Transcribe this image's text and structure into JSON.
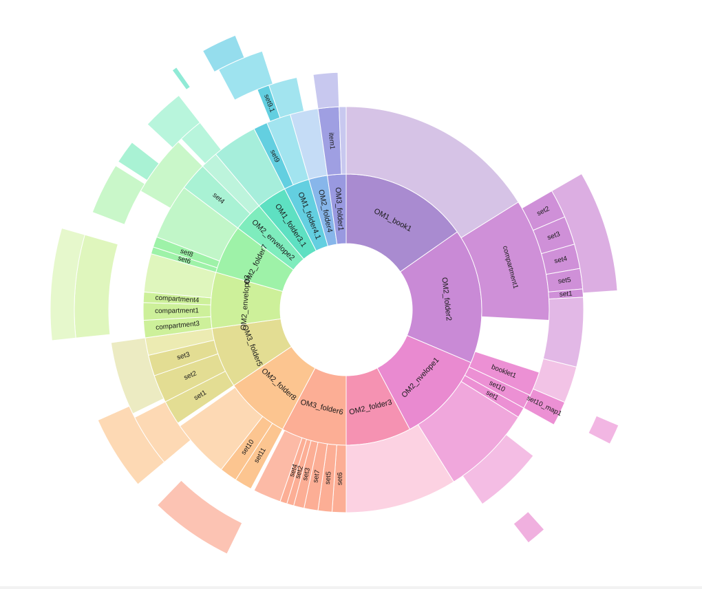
{
  "chart_data": {
    "type": "sunburst",
    "center_color": "#ffffff",
    "segments": [
      {
        "level": 1,
        "label": "OM1_book1",
        "start_deg": 0,
        "end_deg": 55,
        "color": "#a98bd0"
      },
      {
        "level": 1,
        "label": "OM2_folder2",
        "start_deg": 55,
        "end_deg": 113,
        "color": "#c98ad6"
      },
      {
        "level": 1,
        "label": "OM2_nvelope1",
        "start_deg": 113,
        "end_deg": 152,
        "color": "#e98ad0"
      },
      {
        "level": 1,
        "label": "OM2_folder3",
        "start_deg": 152,
        "end_deg": 180,
        "color": "#f592b2"
      },
      {
        "level": 1,
        "label": "OM3_folder6",
        "start_deg": 180,
        "end_deg": 208,
        "color": "#fcae95"
      },
      {
        "level": 1,
        "label": "OM2_folder8",
        "start_deg": 208,
        "end_deg": 236,
        "color": "#fcc590"
      },
      {
        "level": 1,
        "label": "OM3_folder5",
        "start_deg": 236,
        "end_deg": 262,
        "color": "#e3dd93"
      },
      {
        "level": 1,
        "label": "OM2_envelope3",
        "start_deg": 262,
        "end_deg": 286,
        "color": "#cdf09a"
      },
      {
        "level": 1,
        "label": "OM2_folder7",
        "start_deg": 286,
        "end_deg": 307,
        "color": "#9ef2a8"
      },
      {
        "level": 1,
        "label": "OM2_envelope2",
        "start_deg": 307,
        "end_deg": 320,
        "color": "#7eecbd"
      },
      {
        "level": 1,
        "label": "OM1_folder3.1",
        "start_deg": 320,
        "end_deg": 333,
        "color": "#5ee0c2"
      },
      {
        "level": 1,
        "label": "OM1_folder4.1",
        "start_deg": 333,
        "end_deg": 344,
        "color": "#63cfe0"
      },
      {
        "level": 1,
        "label": "OM2_folder4",
        "start_deg": 344,
        "end_deg": 352,
        "color": "#87b6ea"
      },
      {
        "level": 1,
        "label": "OM3_folder1",
        "start_deg": 352,
        "end_deg": 360,
        "color": "#9999e0"
      },
      {
        "level": 2,
        "label": "",
        "start_deg": 0,
        "end_deg": 58,
        "color": "#d6c3e6"
      },
      {
        "level": 2,
        "label": "compartment1",
        "start_deg": 58,
        "end_deg": 93,
        "color": "#cf90d8"
      },
      {
        "level": 2,
        "label": "booklet1",
        "start_deg": 108,
        "end_deg": 115,
        "color": "#ec90d4"
      },
      {
        "level": 2,
        "label": "set10",
        "start_deg": 115,
        "end_deg": 119,
        "color": "#ec90d4"
      },
      {
        "level": 2,
        "label": "set1",
        "start_deg": 119,
        "end_deg": 122,
        "color": "#ec90d4"
      },
      {
        "level": 2,
        "label": "",
        "start_deg": 122,
        "end_deg": 148,
        "color": "#f0a7dc"
      },
      {
        "level": 2,
        "label": "",
        "start_deg": 148,
        "end_deg": 180,
        "color": "#fcd2e2"
      },
      {
        "level": 2,
        "label": "set6",
        "start_deg": 180,
        "end_deg": 184,
        "color": "#fcae95"
      },
      {
        "level": 2,
        "label": "set5",
        "start_deg": 184,
        "end_deg": 188,
        "color": "#fcae95"
      },
      {
        "level": 2,
        "label": "set7",
        "start_deg": 188,
        "end_deg": 192,
        "color": "#fcae95"
      },
      {
        "level": 2,
        "label": "set3",
        "start_deg": 192,
        "end_deg": 195,
        "color": "#fcae95"
      },
      {
        "level": 2,
        "label": "set2",
        "start_deg": 195,
        "end_deg": 197,
        "color": "#fcae95"
      },
      {
        "level": 2,
        "label": "set4",
        "start_deg": 197,
        "end_deg": 199,
        "color": "#fcae95"
      },
      {
        "level": 2,
        "label": "",
        "start_deg": 199,
        "end_deg": 207,
        "color": "#fcbaa6"
      },
      {
        "level": 2,
        "label": "set11",
        "start_deg": 208,
        "end_deg": 213,
        "color": "#fcc590"
      },
      {
        "level": 2,
        "label": "set10",
        "start_deg": 213,
        "end_deg": 218,
        "color": "#fcc590"
      },
      {
        "level": 2,
        "label": "",
        "start_deg": 218,
        "end_deg": 235,
        "color": "#fdd9b4"
      },
      {
        "level": 2,
        "label": "set1",
        "start_deg": 236,
        "end_deg": 243,
        "color": "#e3dd93"
      },
      {
        "level": 2,
        "label": "set2",
        "start_deg": 243,
        "end_deg": 251,
        "color": "#e3dd93"
      },
      {
        "level": 2,
        "label": "set3",
        "start_deg": 251,
        "end_deg": 257,
        "color": "#e3dd93"
      },
      {
        "level": 2,
        "label": "",
        "start_deg": 257,
        "end_deg": 262,
        "color": "#ecebb2"
      },
      {
        "level": 2,
        "label": "compartment3",
        "start_deg": 262,
        "end_deg": 267,
        "color": "#cdf09a"
      },
      {
        "level": 2,
        "label": "compartment1",
        "start_deg": 267,
        "end_deg": 272,
        "color": "#cdf09a"
      },
      {
        "level": 2,
        "label": "compartment4",
        "start_deg": 272,
        "end_deg": 275,
        "color": "#cdf09a"
      },
      {
        "level": 2,
        "label": "",
        "start_deg": 275,
        "end_deg": 286,
        "color": "#dff6bd"
      },
      {
        "level": 2,
        "label": "set6",
        "start_deg": 286,
        "end_deg": 288,
        "color": "#9ef2a8"
      },
      {
        "level": 2,
        "label": "set8",
        "start_deg": 288,
        "end_deg": 291,
        "color": "#9ef2a8"
      },
      {
        "level": 2,
        "label": "",
        "start_deg": 291,
        "end_deg": 307,
        "color": "#c1f6c8"
      },
      {
        "level": 2,
        "label": "set4",
        "start_deg": 307,
        "end_deg": 315,
        "color": "#a9f2d4"
      },
      {
        "level": 2,
        "label": "",
        "start_deg": 315,
        "end_deg": 320,
        "color": "#bdf4dc"
      },
      {
        "level": 2,
        "label": "",
        "start_deg": 320,
        "end_deg": 333,
        "color": "#a6eedb"
      },
      {
        "level": 2,
        "label": "set9",
        "start_deg": 333,
        "end_deg": 337,
        "color": "#63cfe0"
      },
      {
        "level": 2,
        "label": "",
        "start_deg": 337,
        "end_deg": 344,
        "color": "#a2e4ef"
      },
      {
        "level": 2,
        "label": "",
        "start_deg": 344,
        "end_deg": 352,
        "color": "#c5dcf6"
      },
      {
        "level": 2,
        "label": "item1",
        "start_deg": 352,
        "end_deg": 358,
        "color": "#9f9fe2"
      },
      {
        "level": 2,
        "label": "",
        "start_deg": 358,
        "end_deg": 360,
        "color": "#c8c8ef"
      },
      {
        "level": 3,
        "label": "set2",
        "start_deg": 60,
        "end_deg": 67,
        "color": "#cf90d8"
      },
      {
        "level": 3,
        "label": "set3",
        "start_deg": 67,
        "end_deg": 74,
        "color": "#cf90d8"
      },
      {
        "level": 3,
        "label": "set4",
        "start_deg": 74,
        "end_deg": 80,
        "color": "#cf90d8"
      },
      {
        "level": 3,
        "label": "set5",
        "start_deg": 80,
        "end_deg": 85,
        "color": "#cf90d8"
      },
      {
        "level": 3,
        "label": "set1",
        "start_deg": 85,
        "end_deg": 87,
        "color": "#cf90d8"
      },
      {
        "level": 3,
        "label": "",
        "start_deg": 87,
        "end_deg": 104,
        "color": "#e2b8e6"
      },
      {
        "level": 3,
        "label": "",
        "start_deg": 104,
        "end_deg": 113,
        "color": "#f2c3e6"
      },
      {
        "level": 3,
        "label": "set10_map1",
        "start_deg": 113,
        "end_deg": 119,
        "color": "#ec90d4"
      },
      {
        "level": 3,
        "label": "",
        "start_deg": 128,
        "end_deg": 145,
        "color": "#f4bde4"
      },
      {
        "level": 3,
        "label": "",
        "start_deg": 230,
        "end_deg": 243,
        "color": "#fdd9b4"
      },
      {
        "level": 3,
        "label": "",
        "start_deg": 244,
        "end_deg": 262,
        "color": "#ecebc2"
      },
      {
        "level": 3,
        "label": "",
        "start_deg": 300,
        "end_deg": 315,
        "color": "#c9f7c9"
      },
      {
        "level": 3,
        "label": "",
        "start_deg": 316,
        "end_deg": 322,
        "color": "#b8f5dc"
      },
      {
        "level": 3,
        "label": "set9.1",
        "start_deg": 338,
        "end_deg": 341,
        "color": "#63cfe0"
      },
      {
        "level": 3,
        "label": "",
        "start_deg": 341,
        "end_deg": 348,
        "color": "#a2e4ef"
      },
      {
        "level": 3,
        "label": "",
        "start_deg": 352,
        "end_deg": 358,
        "color": "#c8c8ef"
      },
      {
        "level": 4,
        "label": "",
        "start_deg": 60,
        "end_deg": 86,
        "color": "#dcaee2"
      },
      {
        "level": 4,
        "label": "",
        "start_deg": 206,
        "end_deg": 224,
        "color": "#fcc3b3"
      },
      {
        "level": 4,
        "label": "",
        "start_deg": 230,
        "end_deg": 246,
        "color": "#fdd9b4"
      },
      {
        "level": 4,
        "label": "",
        "start_deg": 264,
        "end_deg": 286,
        "color": "#dff6bd"
      },
      {
        "level": 4,
        "label": "",
        "start_deg": 291,
        "end_deg": 302,
        "color": "#c9f7c9"
      },
      {
        "level": 4,
        "label": "",
        "start_deg": 303,
        "end_deg": 308,
        "color": "#a9f2d4"
      },
      {
        "level": 4,
        "label": "",
        "start_deg": 313,
        "end_deg": 322,
        "color": "#b8f5dc"
      },
      {
        "level": 4,
        "label": "",
        "start_deg": 332,
        "end_deg": 342,
        "color": "#9ee3ef"
      },
      {
        "level": 5,
        "label": "",
        "start_deg": 113,
        "end_deg": 117,
        "color": "#f2b6e3"
      },
      {
        "level": 5,
        "label": "",
        "start_deg": 138,
        "end_deg": 142,
        "color": "#f0b0df"
      },
      {
        "level": 5,
        "label": "",
        "start_deg": 264,
        "end_deg": 286,
        "color": "#e6f8cc"
      },
      {
        "level": 5,
        "label": "",
        "start_deg": 331,
        "end_deg": 338,
        "color": "#95dded"
      },
      {
        "level": 5,
        "label": "",
        "start_deg": 324,
        "end_deg": 325,
        "color": "#90ead6"
      }
    ]
  }
}
